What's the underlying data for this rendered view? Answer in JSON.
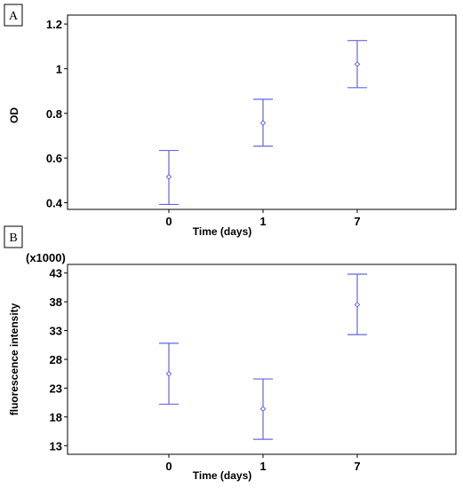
{
  "colors": {
    "marker": "#6666dd",
    "frame": "#000000"
  },
  "chart_data": [
    {
      "panel_label": "A",
      "type": "scatter",
      "subtype": "means with error bars",
      "categories": [
        "0",
        "1",
        "7"
      ],
      "xlabel": "Time (days)",
      "ylabel": "OD",
      "scale_note": "",
      "ylim": [
        0.37,
        1.24
      ],
      "yticks": [
        0.4,
        0.6,
        0.8,
        1,
        1.2
      ],
      "ytick_labels": [
        "0.4",
        "0.6",
        "0.8",
        "1",
        "1.2"
      ],
      "series": [
        {
          "mean": [
            0.516,
            0.757,
            1.02
          ],
          "lower": [
            0.392,
            0.653,
            0.915
          ],
          "upper": [
            0.634,
            0.863,
            1.126
          ]
        }
      ]
    },
    {
      "panel_label": "B",
      "type": "scatter",
      "subtype": "means with error bars",
      "categories": [
        "0",
        "1",
        "7"
      ],
      "xlabel": "Time (days)",
      "ylabel": "fluorescence intensity",
      "scale_note": "(x1000)",
      "ylim": [
        11.5,
        44.5
      ],
      "yticks": [
        13,
        18,
        23,
        28,
        33,
        38,
        43
      ],
      "ytick_labels": [
        "13",
        "18",
        "23",
        "28",
        "33",
        "38",
        "43"
      ],
      "series": [
        {
          "mean": [
            25.5,
            19.4,
            37.5
          ],
          "lower": [
            20.2,
            14.1,
            32.3
          ],
          "upper": [
            30.8,
            24.6,
            42.8
          ]
        }
      ]
    }
  ]
}
